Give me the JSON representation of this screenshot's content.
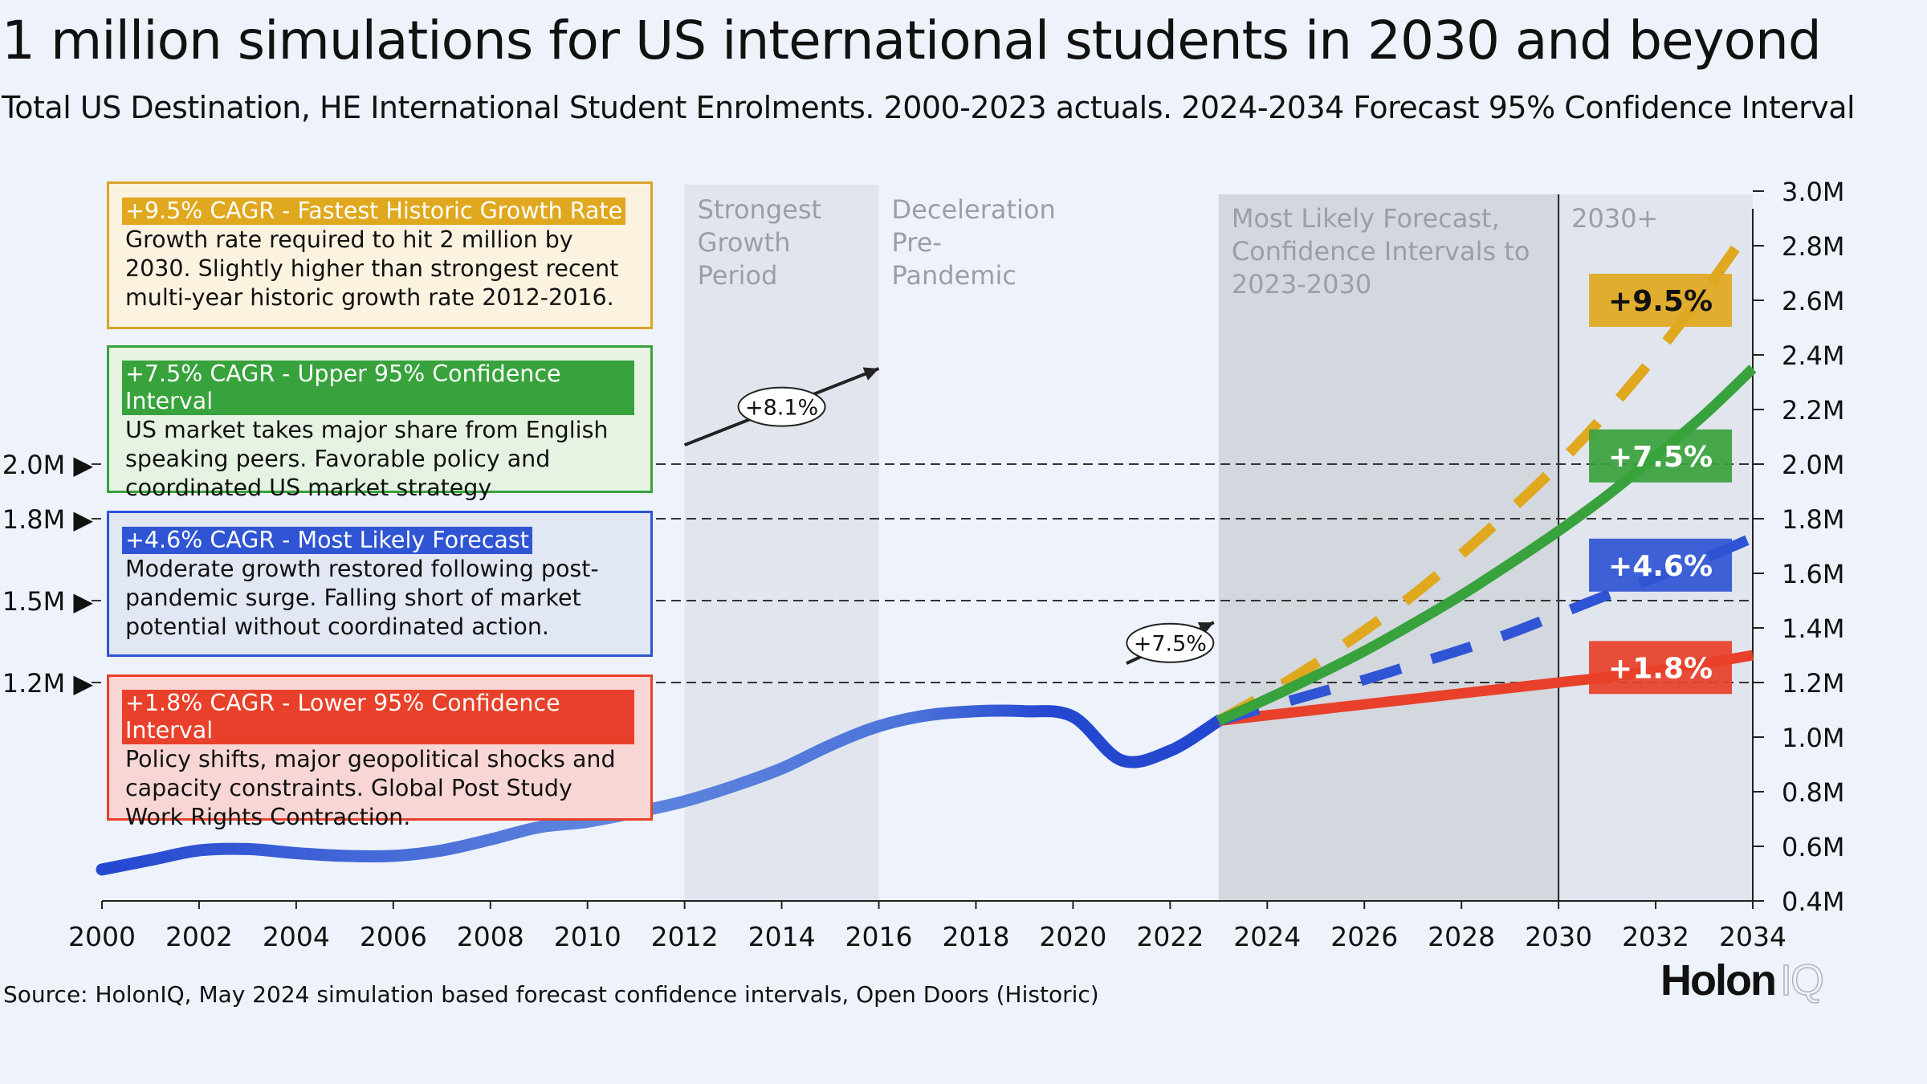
{
  "title": "1 million simulations for US international students in 2030 and beyond",
  "subtitle": "Total US Destination, HE International Student Enrolments. 2000-2023 actuals. 2024-2034 Forecast 95% Confidence Interval",
  "source": "Source: HolonIQ, May 2024 simulation based forecast confidence intervals, Open Doors (Historic)",
  "logo": {
    "main": "Holon",
    "suffix": "IQ"
  },
  "colors": {
    "background": "#eef2fa",
    "historic": "#2f55d4",
    "upper": "#38a23c",
    "likely": "#2f55d4",
    "lower": "#e8402a",
    "fastest": "#e0a81e",
    "period_shade": "#e1e5ee",
    "forecast_shade": "#d3d7de"
  },
  "boxes": [
    {
      "key": "fastest",
      "head": "+9.5% CAGR - Fastest Historic Growth Rate",
      "body": "Growth rate required to hit 2 million by 2030. Slightly higher than strongest recent multi-year historic growth rate 2012-2016.",
      "border": "#d9a42a",
      "fill": "#fbf2df",
      "head_bg": "#e0a81e"
    },
    {
      "key": "upper",
      "head": "+7.5% CAGR - Upper 95% Confidence Interval",
      "body": "US market takes major share from English speaking peers. Favorable policy and coordinated US market strategy",
      "border": "#38a23c",
      "fill": "#e6f3e3",
      "head_bg": "#38a23c"
    },
    {
      "key": "likely",
      "head": "+4.6% CAGR - Most Likely Forecast",
      "body": "Moderate growth restored following post-pandemic surge. Falling short of market potential without coordinated action.",
      "border": "#2f55d4",
      "fill": "#e1e7f3",
      "head_bg": "#2f55d4"
    },
    {
      "key": "lower",
      "head": "+1.8% CAGR - Lower 95% Confidence Interval",
      "body": "Policy shifts, major geopolitical shocks and capacity constraints. Global Post Study Work Rights Contraction.",
      "border": "#e8402a",
      "fill": "#f8d6d6",
      "head_bg": "#e8402a"
    }
  ],
  "chart_data": {
    "type": "line",
    "xlim": [
      2000,
      2034
    ],
    "ylim": [
      0.4,
      3.0
    ],
    "x_ticks": [
      "2000",
      "2002",
      "2004",
      "2006",
      "2008",
      "2010",
      "2012",
      "2014",
      "2016",
      "2018",
      "2020",
      "2022",
      "2024",
      "2026",
      "2028",
      "2030",
      "2032",
      "2034"
    ],
    "y_ticks": [
      "0.4M",
      "0.6M",
      "0.8M",
      "1.0M",
      "1.2M",
      "1.4M",
      "1.6M",
      "1.8M",
      "2.0M",
      "2.2M",
      "2.4M",
      "2.6M",
      "2.8M",
      "3.0M"
    ],
    "reference_lines": [
      {
        "value": 2.0,
        "label": "2.0M ▶"
      },
      {
        "value": 1.8,
        "label": "1.8M ▶"
      },
      {
        "value": 1.5,
        "label": "1.5M ▶"
      },
      {
        "value": 1.2,
        "label": "1.2M ▶"
      }
    ],
    "periods": [
      {
        "x0": 2012,
        "x1": 2016,
        "label": [
          "Strongest",
          "Growth",
          "Period"
        ],
        "kind": "light"
      },
      {
        "x0": 2016,
        "x1": 2020,
        "label": [
          "Deceleration",
          "Pre-",
          "Pandemic"
        ],
        "kind": "none"
      },
      {
        "x0": 2023,
        "x1": 2030,
        "label": [
          "Most Likely Forecast,",
          "Confidence Intervals to",
          "2023-2030"
        ],
        "kind": "dark"
      },
      {
        "x0": 2030,
        "x1": 2034,
        "label": [
          "2030+"
        ],
        "kind": "light"
      }
    ],
    "historic": {
      "x": [
        2000,
        2001,
        2002,
        2003,
        2004,
        2005,
        2006,
        2007,
        2008,
        2009,
        2010,
        2011,
        2012,
        2013,
        2014,
        2015,
        2016,
        2017,
        2018,
        2019,
        2020,
        2021,
        2022,
        2023
      ],
      "y": [
        0.515,
        0.55,
        0.585,
        0.59,
        0.575,
        0.565,
        0.565,
        0.585,
        0.625,
        0.67,
        0.69,
        0.725,
        0.765,
        0.82,
        0.885,
        0.97,
        1.04,
        1.08,
        1.095,
        1.095,
        1.075,
        0.915,
        0.95,
        1.06
      ]
    },
    "series": [
      {
        "name": "+9.5%",
        "key": "fastest",
        "dash": true,
        "x": [
          2023,
          2024,
          2025,
          2026,
          2027,
          2028,
          2029,
          2030,
          2031,
          2032,
          2033,
          2034
        ],
        "y": [
          1.06,
          1.16,
          1.27,
          1.39,
          1.52,
          1.67,
          1.83,
          2.0,
          2.19,
          2.4,
          2.63,
          2.88
        ]
      },
      {
        "name": "+7.5%",
        "key": "upper",
        "dash": false,
        "x": [
          2023,
          2024,
          2025,
          2026,
          2027,
          2028,
          2029,
          2030,
          2031,
          2032,
          2033,
          2034
        ],
        "y": [
          1.06,
          1.14,
          1.225,
          1.315,
          1.415,
          1.52,
          1.635,
          1.755,
          1.885,
          2.03,
          2.18,
          2.35
        ]
      },
      {
        "name": "+4.6%",
        "key": "likely",
        "dash": true,
        "x": [
          2023,
          2024,
          2025,
          2026,
          2027,
          2028,
          2029,
          2030,
          2031,
          2032,
          2033,
          2034
        ],
        "y": [
          1.06,
          1.11,
          1.16,
          1.21,
          1.265,
          1.32,
          1.38,
          1.45,
          1.52,
          1.585,
          1.655,
          1.73
        ]
      },
      {
        "name": "+1.8%",
        "key": "lower",
        "dash": false,
        "x": [
          2023,
          2024,
          2025,
          2026,
          2027,
          2028,
          2029,
          2030,
          2031,
          2032,
          2033,
          2034
        ],
        "y": [
          1.06,
          1.08,
          1.1,
          1.12,
          1.14,
          1.16,
          1.18,
          1.2,
          1.22,
          1.245,
          1.27,
          1.3
        ]
      }
    ],
    "end_labels": [
      {
        "text": "+9.5%",
        "key": "fastest",
        "y": 2.6
      },
      {
        "text": "+7.5%",
        "key": "upper",
        "y": 2.03
      },
      {
        "text": "+4.6%",
        "key": "likely",
        "y": 1.63
      },
      {
        "text": "+1.8%",
        "key": "lower",
        "y": 1.255
      }
    ],
    "annotations": [
      {
        "text": "+8.1%",
        "x_from": 2012.0,
        "y_from": 2.07,
        "x_to": 2016.0,
        "y_to": 2.35
      },
      {
        "text": "+7.5%",
        "x_from": 2021.1,
        "y_from": 1.27,
        "x_to": 2022.9,
        "y_to": 1.42
      }
    ]
  }
}
